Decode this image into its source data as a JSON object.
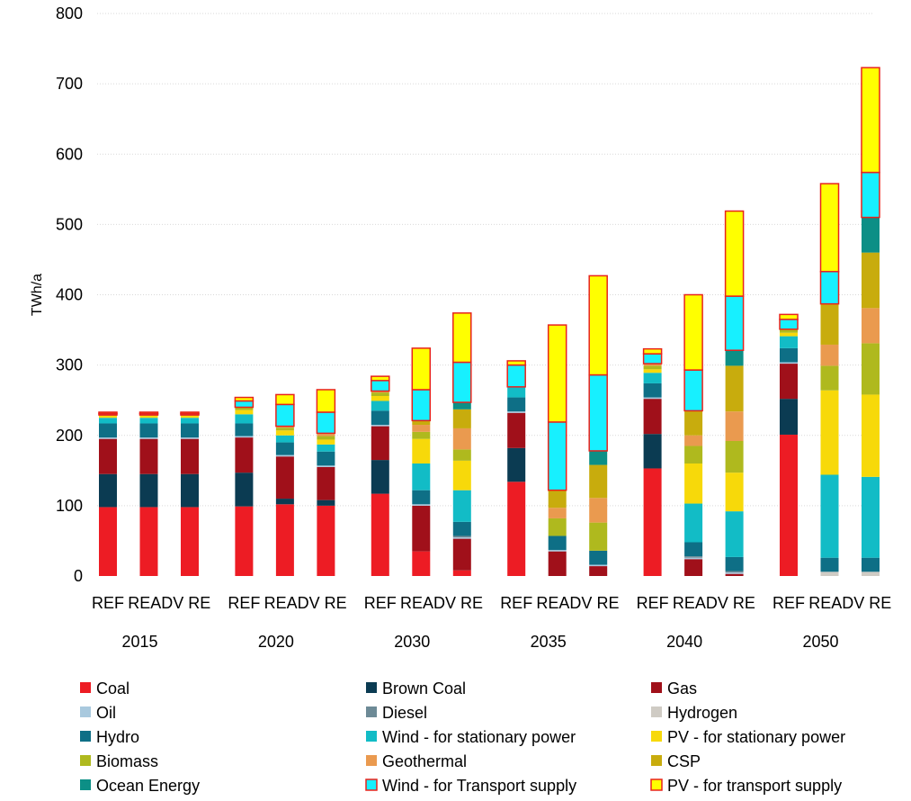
{
  "chart_data": {
    "type": "stacked-bar",
    "ylabel": "TWh/a",
    "ylim": [
      0,
      800
    ],
    "yticks": [
      0,
      100,
      200,
      300,
      400,
      500,
      600,
      700,
      800
    ],
    "grid": true,
    "legend_position": "bottom",
    "groups": [
      "2015",
      "2020",
      "2030",
      "2035",
      "2040",
      "2050"
    ],
    "bar_labels": [
      "REF",
      "RE",
      "ADV RE"
    ],
    "tick_label_text": [
      "REF",
      "READV RE"
    ],
    "series": [
      {
        "name": "Coal",
        "color": "#ED1C24",
        "outline": false
      },
      {
        "name": "Brown Coal",
        "color": "#0B3B52",
        "outline": false
      },
      {
        "name": "Gas",
        "color": "#A0101A",
        "outline": false
      },
      {
        "name": "Oil",
        "color": "#A9C9DE",
        "outline": false
      },
      {
        "name": "Diesel",
        "color": "#6D8A96",
        "outline": false
      },
      {
        "name": "Hydrogen",
        "color": "#CFCBC4",
        "outline": false
      },
      {
        "name": "Hydro",
        "color": "#0E6F86",
        "outline": false
      },
      {
        "name": "Wind - for stationary power",
        "color": "#12BCC6",
        "outline": false
      },
      {
        "name": "PV - for stationary power",
        "color": "#F7D90A",
        "outline": false
      },
      {
        "name": "Biomass",
        "color": "#AFB91E",
        "outline": false
      },
      {
        "name": "Geothermal",
        "color": "#EA9A4F",
        "outline": false
      },
      {
        "name": "CSP",
        "color": "#C8AC0D",
        "outline": false
      },
      {
        "name": "Ocean Energy",
        "color": "#0C8F86",
        "outline": false
      },
      {
        "name": "Wind - for Transport supply",
        "color": "#17F0FF",
        "outline": true
      },
      {
        "name": "PV - for transport supply",
        "color": "#FFFF00",
        "outline": true
      }
    ],
    "bars": [
      {
        "group": "2015",
        "label": "REF",
        "values": [
          98,
          47,
          50,
          2,
          0,
          0,
          20,
          8,
          3,
          1,
          0,
          0,
          0,
          2,
          2
        ]
      },
      {
        "group": "2015",
        "label": "RE",
        "values": [
          98,
          47,
          50,
          2,
          0,
          0,
          20,
          8,
          3,
          1,
          0,
          0,
          0,
          2,
          2
        ]
      },
      {
        "group": "2015",
        "label": "ADV RE",
        "values": [
          98,
          47,
          50,
          2,
          0,
          0,
          20,
          8,
          3,
          1,
          0,
          0,
          0,
          2,
          2
        ]
      },
      {
        "group": "2020",
        "label": "REF",
        "values": [
          99,
          48,
          50,
          2,
          0,
          0,
          18,
          13,
          6,
          4,
          0,
          0,
          0,
          9,
          5
        ]
      },
      {
        "group": "2020",
        "label": "RE",
        "values": [
          102,
          8,
          60,
          2,
          0,
          0,
          18,
          10,
          7,
          4,
          2,
          0,
          0,
          31,
          14
        ]
      },
      {
        "group": "2020",
        "label": "ADV RE",
        "values": [
          100,
          8,
          47,
          2,
          0,
          0,
          20,
          10,
          7,
          5,
          3,
          1,
          0,
          30,
          32
        ]
      },
      {
        "group": "2030",
        "label": "REF",
        "values": [
          117,
          48,
          48,
          2,
          0,
          0,
          20,
          14,
          7,
          5,
          2,
          0,
          0,
          15,
          6
        ]
      },
      {
        "group": "2030",
        "label": "RE",
        "values": [
          35,
          0,
          65,
          2,
          0,
          0,
          20,
          38,
          35,
          10,
          10,
          6,
          0,
          44,
          59
        ]
      },
      {
        "group": "2030",
        "label": "ADV RE",
        "values": [
          8,
          0,
          45,
          2,
          2,
          0,
          20,
          45,
          42,
          16,
          30,
          27,
          10,
          57,
          70
        ]
      },
      {
        "group": "2035",
        "label": "REF",
        "values": [
          134,
          48,
          50,
          2,
          0,
          0,
          20,
          15,
          0,
          0,
          0,
          0,
          0,
          31,
          6
        ]
      },
      {
        "group": "2035",
        "label": "RE",
        "values": [
          0,
          0,
          35,
          2,
          0,
          0,
          20,
          0,
          0,
          25,
          15,
          25,
          0,
          97,
          138
        ]
      },
      {
        "group": "2035",
        "label": "ADV RE",
        "values": [
          0,
          0,
          14,
          2,
          0,
          0,
          20,
          0,
          0,
          40,
          35,
          47,
          20,
          108,
          141
        ]
      },
      {
        "group": "2040",
        "label": "REF",
        "values": [
          153,
          49,
          50,
          2,
          0,
          0,
          20,
          15,
          5,
          5,
          3,
          0,
          0,
          14,
          7
        ]
      },
      {
        "group": "2040",
        "label": "RE",
        "values": [
          0,
          0,
          24,
          2,
          2,
          0,
          20,
          55,
          57,
          25,
          15,
          35,
          0,
          58,
          107
        ]
      },
      {
        "group": "2040",
        "label": "ADV RE",
        "values": [
          0,
          0,
          3,
          2,
          2,
          0,
          20,
          65,
          55,
          45,
          42,
          65,
          22,
          77,
          121
        ]
      },
      {
        "group": "2050",
        "label": "REF",
        "values": [
          201,
          51,
          50,
          2,
          0,
          0,
          20,
          17,
          5,
          5,
          0,
          0,
          0,
          14,
          7
        ]
      },
      {
        "group": "2050",
        "label": "RE",
        "values": [
          0,
          0,
          0,
          0,
          0,
          6,
          20,
          118,
          120,
          35,
          30,
          58,
          0,
          46,
          125
        ]
      },
      {
        "group": "2050",
        "label": "ADV RE",
        "values": [
          0,
          0,
          0,
          0,
          0,
          6,
          20,
          115,
          117,
          73,
          50,
          79,
          50,
          64,
          149
        ]
      }
    ]
  }
}
